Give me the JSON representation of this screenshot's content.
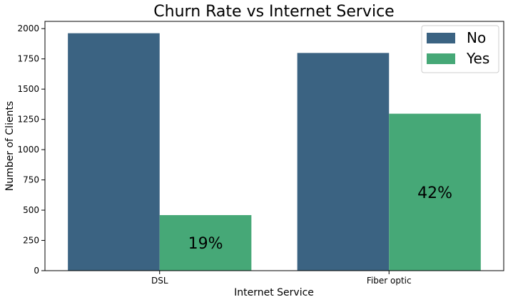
{
  "chart_data": {
    "type": "bar",
    "title": "Churn Rate vs Internet Service",
    "xlabel": "Internet Service",
    "ylabel": "Number of Clients",
    "categories": [
      "DSL",
      "Fiber optic"
    ],
    "series": [
      {
        "name": "No",
        "color": "#3b6382",
        "values": [
          1962,
          1799
        ]
      },
      {
        "name": "Yes",
        "color": "#46a877",
        "values": [
          459,
          1297
        ]
      }
    ],
    "data_labels": [
      {
        "category": "DSL",
        "series": "Yes",
        "text": "19%"
      },
      {
        "category": "Fiber optic",
        "series": "Yes",
        "text": "42%"
      }
    ],
    "yticks": [
      "0",
      "250",
      "500",
      "750",
      "1000",
      "1250",
      "1500",
      "1750",
      "2000"
    ],
    "ylim": [
      0,
      2060
    ],
    "grid": false,
    "legend_position": "top-right"
  }
}
